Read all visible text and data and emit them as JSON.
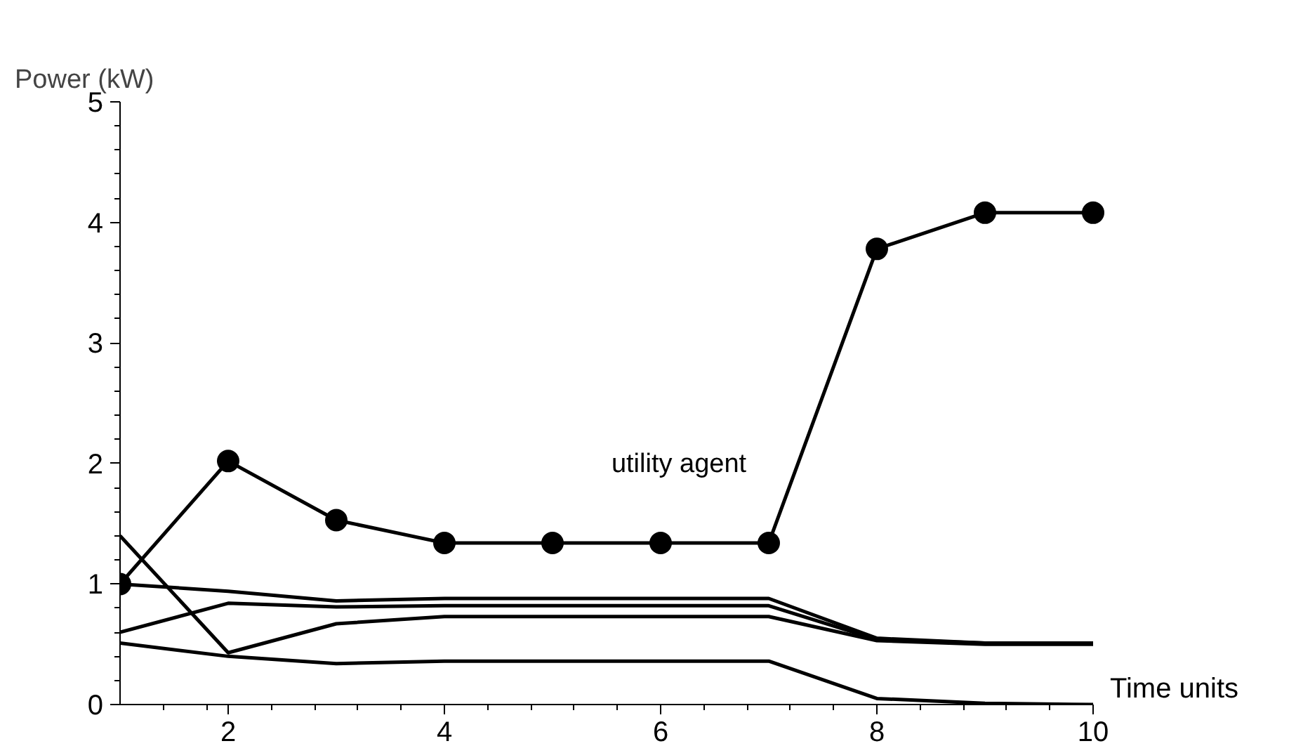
{
  "chart_data": {
    "type": "line",
    "xlabel": "Time units",
    "ylabel": "Power (kW)",
    "x": [
      1,
      2,
      3,
      4,
      5,
      6,
      7,
      8,
      9,
      10
    ],
    "series": [
      {
        "color": "#000000",
        "marker": "circle",
        "values": [
          1.0,
          2.02,
          1.53,
          1.34,
          1.34,
          1.34,
          1.34,
          3.78,
          4.08,
          4.08
        ]
      },
      {
        "color": "#000000",
        "values": [
          1.0,
          0.94,
          0.86,
          0.88,
          0.88,
          0.88,
          0.88,
          0.55,
          0.51,
          0.51
        ]
      },
      {
        "color": "#000000",
        "values": [
          0.6,
          0.84,
          0.81,
          0.82,
          0.82,
          0.82,
          0.82,
          0.54,
          0.51,
          0.51
        ]
      },
      {
        "color": "#000000",
        "values": [
          1.4,
          0.43,
          0.67,
          0.73,
          0.73,
          0.73,
          0.73,
          0.53,
          0.5,
          0.5
        ]
      },
      {
        "color": "#000000",
        "values": [
          0.51,
          0.4,
          0.34,
          0.36,
          0.36,
          0.36,
          0.36,
          0.05,
          0.01,
          0.0
        ]
      }
    ],
    "annotations": [
      "utility agent"
    ],
    "xlim": [
      1,
      10
    ],
    "ylim": [
      0,
      5
    ],
    "xticks": [
      {
        "value": 1.4,
        "label": null
      },
      {
        "value": 1.8,
        "label": null
      },
      2,
      {
        "value": 2.4,
        "label": null
      },
      {
        "value": 2.8,
        "label": null
      },
      {
        "value": 3.2,
        "label": null
      },
      {
        "value": 3.6,
        "label": null
      },
      4,
      {
        "value": 4.4,
        "label": null
      },
      {
        "value": 4.8,
        "label": null
      },
      {
        "value": 5.2,
        "label": null
      },
      {
        "value": 5.6,
        "label": null
      },
      6,
      {
        "value": 6.4,
        "label": null
      },
      {
        "value": 6.8,
        "label": null
      },
      {
        "value": 7.2,
        "label": null
      },
      {
        "value": 7.6,
        "label": null
      },
      8,
      {
        "value": 8.4,
        "label": null
      },
      {
        "value": 8.8,
        "label": null
      },
      {
        "value": 9.2,
        "label": null
      },
      {
        "value": 9.6,
        "label": null
      },
      10
    ],
    "yticks": [
      0,
      {
        "value": 0.2,
        "label": null
      },
      {
        "value": 0.4,
        "label": null
      },
      {
        "value": 0.6,
        "label": null
      },
      {
        "value": 0.8,
        "label": null
      },
      1,
      {
        "value": 1.2,
        "label": null
      },
      {
        "value": 1.4,
        "label": null
      },
      {
        "value": 1.6,
        "label": null
      },
      {
        "value": 1.8,
        "label": null
      },
      2,
      {
        "value": 2.2,
        "label": null
      },
      {
        "value": 2.4,
        "label": null
      },
      {
        "value": 2.6,
        "label": null
      },
      {
        "value": 2.8,
        "label": null
      },
      3,
      {
        "value": 3.2,
        "label": null
      },
      {
        "value": 3.4,
        "label": null
      },
      {
        "value": 3.6,
        "label": null
      },
      {
        "value": 3.8,
        "label": null
      },
      4,
      {
        "value": 4.2,
        "label": null
      },
      {
        "value": 4.4,
        "label": null
      },
      {
        "value": 4.6,
        "label": null
      },
      {
        "value": 4.8,
        "label": null
      },
      5
    ],
    "grid": false,
    "line_style": "solid"
  }
}
